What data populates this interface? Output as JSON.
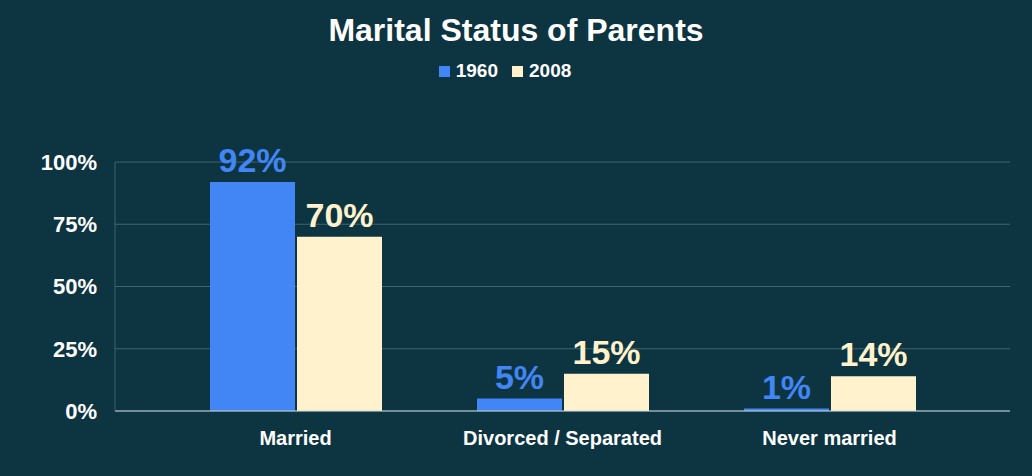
{
  "chart_data": {
    "type": "bar",
    "title": "Marital Status of Parents",
    "categories": [
      "Married",
      "Divorced / Separated",
      "Never married"
    ],
    "series": [
      {
        "name": "1960",
        "color": "#4285f4",
        "values": [
          92,
          5,
          1
        ],
        "value_labels": [
          "92%",
          "5%",
          "1%"
        ]
      },
      {
        "name": "2008",
        "color": "#fff2cc",
        "values": [
          70,
          15,
          14
        ],
        "value_labels": [
          "70%",
          "15%",
          "14%"
        ]
      }
    ],
    "ylim": [
      0,
      100
    ],
    "yticks": [
      {
        "value": 0,
        "label": "0%"
      },
      {
        "value": 25,
        "label": "25%"
      },
      {
        "value": 50,
        "label": "50%"
      },
      {
        "value": 75,
        "label": "75%"
      },
      {
        "value": 100,
        "label": "100%"
      }
    ],
    "grid": true,
    "legend": "top",
    "data_labels": true
  }
}
